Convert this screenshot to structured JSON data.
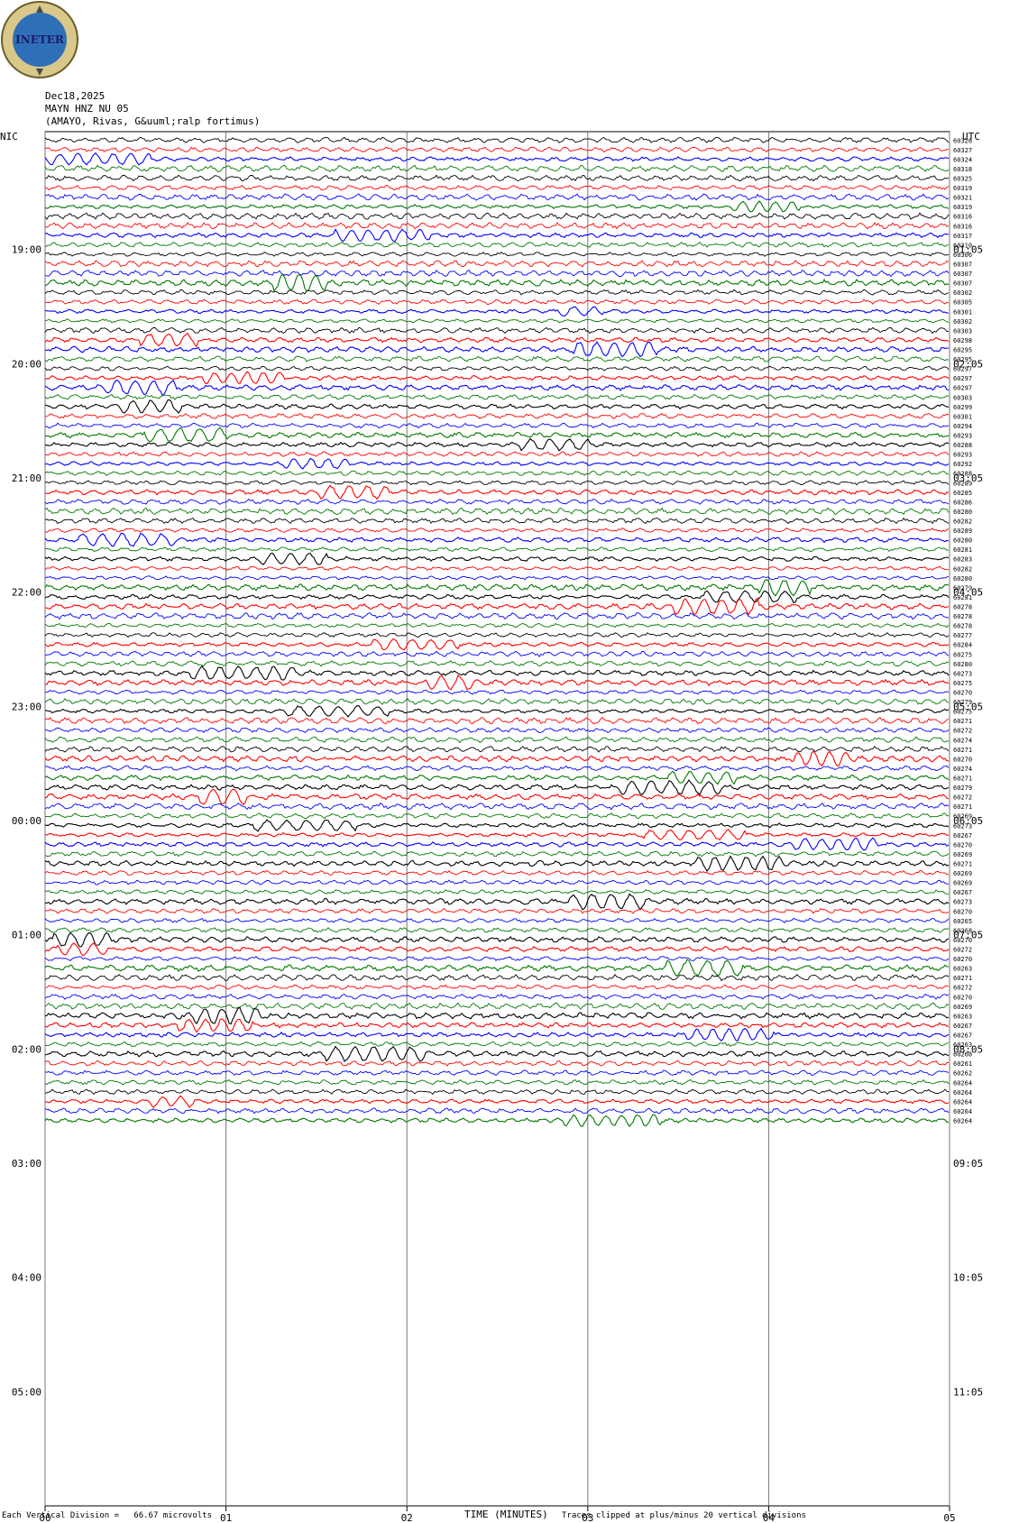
{
  "logo": {
    "text": "INETER",
    "colors": {
      "outer": "#d8c98a",
      "inner": "#2f6fb8",
      "text": "#1a1a6a"
    }
  },
  "header": {
    "date": "Dec18,2025",
    "station": "MAYN HNZ NU 05",
    "location": "(AMAYO, Rivas, G&uuml;ralp fortimus)"
  },
  "left_timezone": "NIC",
  "right_timezone": "UTC",
  "footer": {
    "scale_text": "Each Vertical Division =   66.67 microvolts",
    "x_label": "TIME (MINUTES)",
    "clip_text": "Traces clipped at plus/minus 20 vertical divisions"
  },
  "chart_data": {
    "type": "line",
    "title": "",
    "xlabel": "TIME (MINUTES)",
    "x_ticks": [
      "00",
      "01",
      "02",
      "03",
      "04",
      "05"
    ],
    "xlim": [
      0,
      5
    ],
    "trace_count": 104,
    "trace_minutes": 5,
    "trace_colors": [
      "#000000",
      "#ff0000",
      "#0000ff",
      "#007700"
    ],
    "left_hour_labels": [
      {
        "label": "19:00",
        "trace": 12
      },
      {
        "label": "20:00",
        "trace": 24
      },
      {
        "label": "21:00",
        "trace": 36
      },
      {
        "label": "22:00",
        "trace": 48
      },
      {
        "label": "23:00",
        "trace": 60
      },
      {
        "label": "00:00",
        "trace": 72
      },
      {
        "label": "01:00",
        "trace": 84
      },
      {
        "label": "02:00",
        "trace": 96
      },
      {
        "label": "03:00",
        "trace": 108
      },
      {
        "label": "04:00",
        "trace": 120
      },
      {
        "label": "05:00",
        "trace": 132
      }
    ],
    "right_hour_labels": [
      {
        "label": "01:05",
        "trace": 12
      },
      {
        "label": "02:05",
        "trace": 24
      },
      {
        "label": "03:05",
        "trace": 36
      },
      {
        "label": "04:05",
        "trace": 48
      },
      {
        "label": "05:05",
        "trace": 60
      },
      {
        "label": "06:05",
        "trace": 72
      },
      {
        "label": "07:05",
        "trace": 84
      },
      {
        "label": "08:05",
        "trace": 96
      },
      {
        "label": "09:05",
        "trace": 108
      },
      {
        "label": "10:05",
        "trace": 120
      },
      {
        "label": "11:05",
        "trace": 132
      }
    ],
    "total_rows": 144,
    "trace_values": [
      "60326",
      "60327",
      "60324",
      "60318",
      "60325",
      "60319",
      "60321",
      "60319",
      "60316",
      "60316",
      "60317",
      "60310",
      "60306",
      "60307",
      "60307",
      "60307",
      "60302",
      "60305",
      "60301",
      "60302",
      "60303",
      "60298",
      "60295",
      "60295",
      "60297",
      "60297",
      "60297",
      "60303",
      "60299",
      "60301",
      "60294",
      "60293",
      "60288",
      "60293",
      "60292",
      "60288",
      "60289",
      "60285",
      "60286",
      "60280",
      "60282",
      "60289",
      "60280",
      "60281",
      "60283",
      "60282",
      "60280",
      "60279",
      "60281",
      "60278",
      "60278",
      "60278",
      "60277",
      "60284",
      "60275",
      "60280",
      "60273",
      "60275",
      "60270",
      "60279",
      "60275",
      "60271",
      "60272",
      "60274",
      "60271",
      "60270",
      "60274",
      "60271",
      "60279",
      "60272",
      "60271",
      "60269",
      "60273",
      "60267",
      "60270",
      "60269",
      "60271",
      "60269",
      "60269",
      "60267",
      "60273",
      "60270",
      "60265",
      "60268",
      "60270",
      "60272",
      "60270",
      "60263",
      "60271",
      "60272",
      "60270",
      "60269",
      "60263",
      "60267",
      "60267",
      "60263",
      "60268",
      "60261",
      "60262",
      "60264",
      "60264",
      "60264",
      "60264",
      "60264"
    ]
  }
}
